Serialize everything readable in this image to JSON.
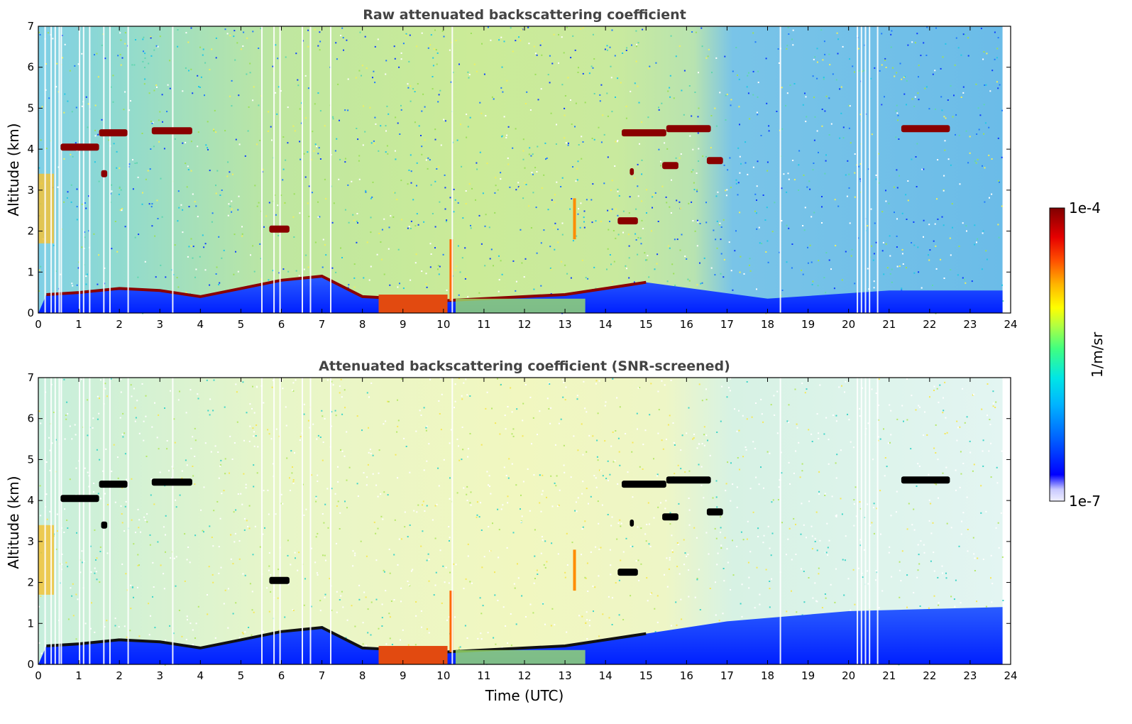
{
  "chart_data": [
    {
      "type": "heatmap",
      "title": "Raw attenuated backscattering coefficient",
      "xlabel": "",
      "ylabel": "Altitude (km)",
      "xlim": [
        0,
        24
      ],
      "ylim": [
        0,
        7
      ],
      "xticks": [
        "0",
        "1",
        "2",
        "3",
        "4",
        "5",
        "6",
        "7",
        "8",
        "9",
        "10",
        "11",
        "12",
        "13",
        "14",
        "15",
        "16",
        "17",
        "18",
        "19",
        "20",
        "21",
        "22",
        "23",
        "24"
      ],
      "yticks": [
        "0",
        "1",
        "2",
        "3",
        "4",
        "5",
        "6",
        "7"
      ],
      "data_end_x": 23.8,
      "boundary_layer_top_km": [
        [
          0.2,
          0.45
        ],
        [
          1,
          0.5
        ],
        [
          2,
          0.6
        ],
        [
          3,
          0.55
        ],
        [
          4,
          0.4
        ],
        [
          5,
          0.6
        ],
        [
          6,
          0.8
        ],
        [
          7,
          0.9
        ],
        [
          8,
          0.4
        ],
        [
          9,
          0.35
        ],
        [
          10,
          0.3
        ],
        [
          11,
          0.35
        ],
        [
          12,
          0.4
        ],
        [
          13,
          0.45
        ],
        [
          14,
          0.6
        ],
        [
          15,
          0.75
        ]
      ],
      "cloud_layers": [
        {
          "x0": 0.55,
          "x1": 1.5,
          "y": 4.05
        },
        {
          "x0": 1.5,
          "x1": 2.2,
          "y": 4.4
        },
        {
          "x0": 2.8,
          "x1": 3.8,
          "y": 4.45
        },
        {
          "x0": 1.55,
          "x1": 1.7,
          "y": 3.4
        },
        {
          "x0": 5.7,
          "x1": 6.2,
          "y": 2.05
        },
        {
          "x0": 14.4,
          "x1": 15.5,
          "y": 4.4
        },
        {
          "x0": 15.5,
          "x1": 16.6,
          "y": 4.5
        },
        {
          "x0": 15.4,
          "x1": 15.8,
          "y": 3.6
        },
        {
          "x0": 16.5,
          "x1": 16.9,
          "y": 3.72
        },
        {
          "x0": 14.6,
          "x1": 14.7,
          "y": 3.45
        },
        {
          "x0": 14.3,
          "x1": 14.8,
          "y": 2.25
        },
        {
          "x0": 21.3,
          "x1": 22.5,
          "y": 4.5
        }
      ]
    },
    {
      "type": "heatmap",
      "title": "Attenuated backscattering coefficient (SNR-screened)",
      "xlabel": "Time (UTC)",
      "ylabel": "Altitude (km)",
      "xlim": [
        0,
        24
      ],
      "ylim": [
        0,
        7
      ],
      "xticks": [
        "0",
        "1",
        "2",
        "3",
        "4",
        "5",
        "6",
        "7",
        "8",
        "9",
        "10",
        "11",
        "12",
        "13",
        "14",
        "15",
        "16",
        "17",
        "18",
        "19",
        "20",
        "21",
        "22",
        "23",
        "24"
      ],
      "yticks": [
        "0",
        "1",
        "2",
        "3",
        "4",
        "5",
        "6",
        "7"
      ],
      "data_end_x": 23.8
    }
  ],
  "colorbar": {
    "max_label": "1e-4",
    "min_label": "1e-7",
    "unit_label": "1/m/sr",
    "scale": "log",
    "colormap": [
      "#f0f0ff",
      "#c8c8ff",
      "#0000ff",
      "#0066ff",
      "#00b4ff",
      "#00e6e6",
      "#40ff80",
      "#b4ff40",
      "#ffff00",
      "#ffb400",
      "#ff5000",
      "#e60000",
      "#800000"
    ]
  }
}
